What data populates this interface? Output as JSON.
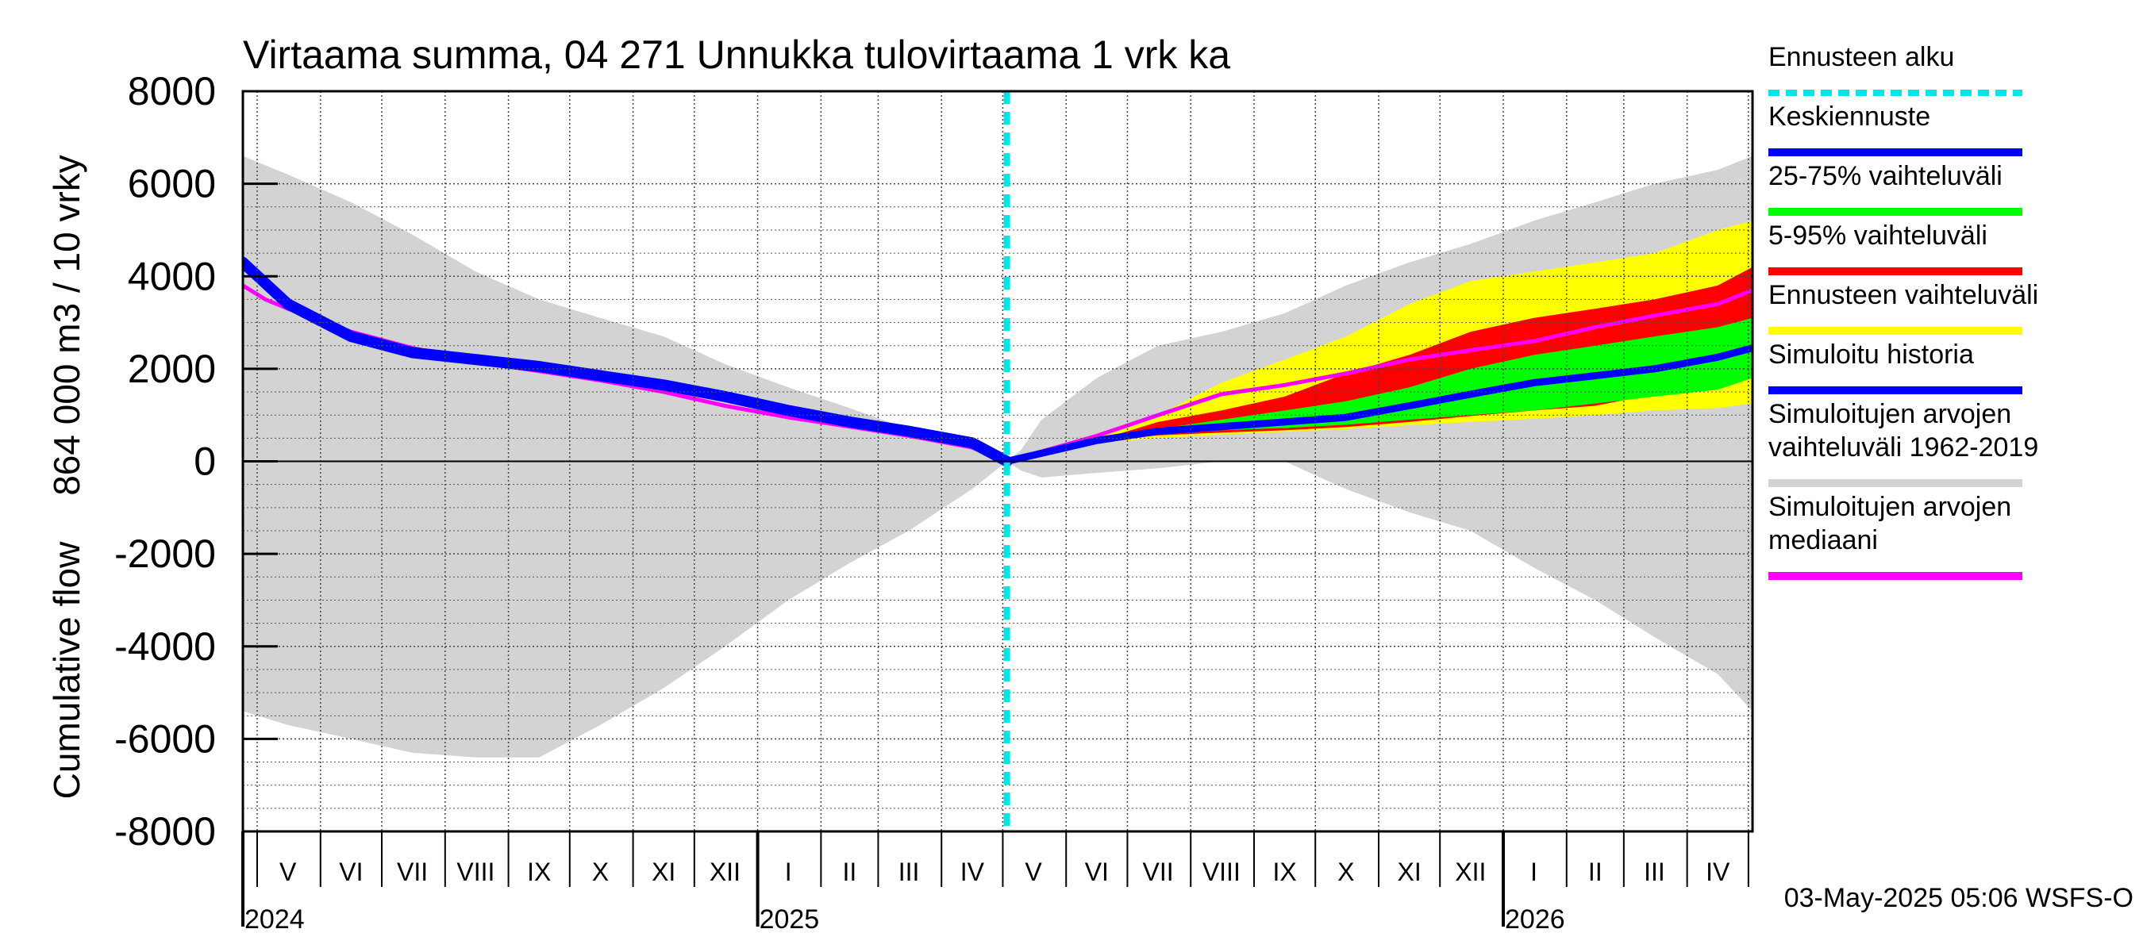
{
  "chart_data": {
    "type": "area",
    "title": "Virtaama summa, 04 271 Unnukka tulovirtaama 1 vrk ka",
    "ylabel_left": "864 000 m3 / 10 vrky",
    "ylabel_right": "Cumulative flow",
    "ylim": [
      -8000,
      8000
    ],
    "yticks": [
      8000,
      6000,
      4000,
      2000,
      0,
      -2000,
      -4000,
      -6000,
      -8000
    ],
    "ytick_labels": [
      "8000",
      "6000",
      "4000",
      "2000",
      "0",
      "-2000",
      "-4000",
      "-6000",
      "-8000"
    ],
    "x_start": "2024-04-24",
    "x_end": "2026-05-03",
    "forecast_start": "2025-05-03",
    "grid": true,
    "month_labels": [
      {
        "label": "V",
        "date": "2024-05-16"
      },
      {
        "label": "VI",
        "date": "2024-06-16"
      },
      {
        "label": "VII",
        "date": "2024-07-16"
      },
      {
        "label": "VIII",
        "date": "2024-08-16"
      },
      {
        "label": "IX",
        "date": "2024-09-16"
      },
      {
        "label": "X",
        "date": "2024-10-16"
      },
      {
        "label": "XI",
        "date": "2024-11-16"
      },
      {
        "label": "XII",
        "date": "2024-12-16"
      },
      {
        "label": "I",
        "date": "2025-01-16"
      },
      {
        "label": "II",
        "date": "2025-02-15"
      },
      {
        "label": "III",
        "date": "2025-03-16"
      },
      {
        "label": "IV",
        "date": "2025-04-16"
      },
      {
        "label": "V",
        "date": "2025-05-16"
      },
      {
        "label": "VI",
        "date": "2025-06-16"
      },
      {
        "label": "VII",
        "date": "2025-07-16"
      },
      {
        "label": "VIII",
        "date": "2025-08-16"
      },
      {
        "label": "IX",
        "date": "2025-09-16"
      },
      {
        "label": "X",
        "date": "2025-10-16"
      },
      {
        "label": "XI",
        "date": "2025-11-16"
      },
      {
        "label": "XII",
        "date": "2025-12-16"
      },
      {
        "label": "I",
        "date": "2026-01-16"
      },
      {
        "label": "II",
        "date": "2026-02-15"
      },
      {
        "label": "III",
        "date": "2026-03-16"
      },
      {
        "label": "IV",
        "date": "2026-04-16"
      }
    ],
    "month_boundaries": [
      "2024-05-01",
      "2024-06-01",
      "2024-07-01",
      "2024-08-01",
      "2024-09-01",
      "2024-10-01",
      "2024-11-01",
      "2024-12-01",
      "2025-01-01",
      "2025-02-01",
      "2025-03-01",
      "2025-04-01",
      "2025-05-01",
      "2025-06-01",
      "2025-07-01",
      "2025-08-01",
      "2025-09-01",
      "2025-10-01",
      "2025-11-01",
      "2025-12-01",
      "2026-01-01",
      "2026-02-01",
      "2026-03-01",
      "2026-04-01",
      "2026-05-01"
    ],
    "year_labels": [
      {
        "label": "2024",
        "date": "2024-04-24"
      },
      {
        "label": "2025",
        "date": "2025-01-01"
      },
      {
        "label": "2026",
        "date": "2026-01-01"
      }
    ],
    "legend": [
      {
        "label": "Ennusteen alku",
        "color": "#00e5e5",
        "style": "dashed"
      },
      {
        "label": "Keskiennuste",
        "color": "#0000ff"
      },
      {
        "label": "25-75% vaihteluväli",
        "color": "#00ff00"
      },
      {
        "label": "5-95% vaihteluväli",
        "color": "#ff0000"
      },
      {
        "label": "Ennusteen vaihteluväli",
        "color": "#ffff00"
      },
      {
        "label": "Simuloitu historia",
        "color": "#0000ff"
      },
      {
        "label": "Simuloitujen arvojen vaihteluväli 1962-2019",
        "lines": [
          "Simuloitujen arvojen",
          "vaihteluväli 1962-2019"
        ],
        "color": "#d3d3d3"
      },
      {
        "label": "Simuloitujen arvojen mediaani",
        "lines": [
          "Simuloitujen arvojen",
          "mediaani"
        ],
        "color": "#ff00ff"
      }
    ],
    "series": [
      {
        "name": "Simuloitujen arvojen vaihteluväli 1962-2019",
        "kind": "band",
        "color": "#d3d3d3",
        "x": [
          "2024-04-24",
          "2024-05-16",
          "2024-06-16",
          "2024-07-16",
          "2024-08-16",
          "2024-09-16",
          "2024-10-16",
          "2024-11-16",
          "2024-12-16",
          "2025-01-16",
          "2025-02-15",
          "2025-03-16",
          "2025-04-16",
          "2025-05-03",
          "2025-05-10",
          "2025-05-20",
          "2025-06-16",
          "2025-07-16",
          "2025-08-16",
          "2025-09-16",
          "2025-10-16",
          "2025-11-16",
          "2025-12-16",
          "2026-01-16",
          "2026-02-15",
          "2026-03-16",
          "2026-04-16",
          "2026-05-03"
        ],
        "upper": [
          6600,
          6200,
          5600,
          4900,
          4100,
          3500,
          3100,
          2700,
          2100,
          1600,
          1150,
          700,
          300,
          0,
          250,
          900,
          1800,
          2500,
          2800,
          3200,
          3800,
          4300,
          4700,
          5200,
          5600,
          6000,
          6300,
          6600
        ],
        "lower": [
          -5400,
          -5700,
          -6000,
          -6300,
          -6400,
          -6400,
          -5700,
          -4900,
          -4000,
          -3000,
          -2200,
          -1500,
          -600,
          0,
          -200,
          -350,
          -250,
          -150,
          0,
          0,
          -600,
          -1100,
          -1500,
          -2300,
          -3000,
          -3800,
          -4600,
          -5400
        ]
      },
      {
        "name": "Ennusteen vaihteluväli",
        "kind": "band",
        "color": "#ffff00",
        "x": [
          "2025-05-03",
          "2025-06-16",
          "2025-07-16",
          "2025-08-16",
          "2025-09-16",
          "2025-10-16",
          "2025-11-16",
          "2025-12-16",
          "2026-01-16",
          "2026-02-15",
          "2026-03-16",
          "2026-04-16",
          "2026-05-03"
        ],
        "upper": [
          0,
          500,
          1000,
          1700,
          2200,
          2700,
          3400,
          3900,
          4100,
          4300,
          4500,
          5000,
          5200
        ],
        "lower": [
          0,
          400,
          500,
          580,
          640,
          700,
          780,
          850,
          920,
          1000,
          1100,
          1150,
          1250
        ]
      },
      {
        "name": "5-95% vaihteluväli",
        "kind": "band",
        "color": "#ff0000",
        "x": [
          "2025-05-03",
          "2025-06-16",
          "2025-07-16",
          "2025-08-16",
          "2025-09-16",
          "2025-10-16",
          "2025-11-16",
          "2025-12-16",
          "2026-01-16",
          "2026-02-15",
          "2026-03-16",
          "2026-04-16",
          "2026-05-03"
        ],
        "upper": [
          0,
          450,
          850,
          1100,
          1400,
          1900,
          2300,
          2800,
          3100,
          3300,
          3500,
          3800,
          4200
        ],
        "lower": [
          0,
          420,
          560,
          620,
          670,
          740,
          850,
          980,
          1100,
          1200,
          1450,
          1650,
          1900
        ]
      },
      {
        "name": "25-75% vaihteluväli",
        "kind": "band",
        "color": "#00ff00",
        "x": [
          "2025-05-03",
          "2025-06-16",
          "2025-07-16",
          "2025-08-16",
          "2025-09-16",
          "2025-10-16",
          "2025-11-16",
          "2025-12-16",
          "2026-01-16",
          "2026-02-15",
          "2026-03-16",
          "2026-04-16",
          "2026-05-03"
        ],
        "upper": [
          0,
          440,
          700,
          900,
          1100,
          1300,
          1600,
          2000,
          2300,
          2500,
          2700,
          2900,
          3100
        ],
        "lower": [
          0,
          430,
          600,
          670,
          720,
          790,
          900,
          1000,
          1100,
          1250,
          1400,
          1550,
          1800
        ]
      },
      {
        "name": "Simuloitujen arvojen mediaani",
        "kind": "line",
        "color": "#ff00ff",
        "x": [
          "2024-04-24",
          "2024-05-05",
          "2024-05-16",
          "2024-06-16",
          "2024-07-16",
          "2024-08-16",
          "2024-09-16",
          "2024-10-16",
          "2024-11-16",
          "2024-12-16",
          "2025-01-16",
          "2025-02-15",
          "2025-03-16",
          "2025-04-16",
          "2025-05-03",
          "2025-06-16",
          "2025-07-16",
          "2025-08-16",
          "2025-09-16",
          "2025-10-16",
          "2025-11-16",
          "2025-12-16",
          "2026-01-16",
          "2026-02-15",
          "2026-03-16",
          "2026-04-16",
          "2026-05-03"
        ],
        "y": [
          3800,
          3500,
          3300,
          2800,
          2450,
          2150,
          1950,
          1750,
          1500,
          1200,
          950,
          750,
          550,
          300,
          0,
          550,
          1000,
          1450,
          1650,
          1900,
          2200,
          2400,
          2600,
          2900,
          3150,
          3400,
          3700
        ]
      },
      {
        "name": "Simuloitu historia",
        "kind": "line",
        "color": "#0000ff",
        "width": 14,
        "x": [
          "2024-04-24",
          "2024-05-16",
          "2024-06-16",
          "2024-07-16",
          "2024-08-16",
          "2024-09-16",
          "2024-10-16",
          "2024-11-16",
          "2024-12-16",
          "2025-01-16",
          "2025-02-15",
          "2025-03-16",
          "2025-04-16",
          "2025-05-03"
        ],
        "y": [
          4300,
          3400,
          2700,
          2350,
          2200,
          2050,
          1850,
          1650,
          1400,
          1100,
          850,
          650,
          400,
          0
        ]
      },
      {
        "name": "Keskiennuste",
        "kind": "line",
        "color": "#0000ff",
        "width": 9,
        "x": [
          "2025-05-03",
          "2025-06-16",
          "2025-07-16",
          "2025-08-16",
          "2025-09-16",
          "2025-10-16",
          "2025-11-16",
          "2025-12-16",
          "2026-01-16",
          "2026-02-15",
          "2026-03-16",
          "2026-04-16",
          "2026-05-03"
        ],
        "y": [
          0,
          450,
          650,
          750,
          850,
          950,
          1200,
          1450,
          1700,
          1850,
          2000,
          2250,
          2450
        ]
      }
    ]
  },
  "footer": {
    "timestamp": "03-May-2025 05:06 WSFS-O"
  }
}
